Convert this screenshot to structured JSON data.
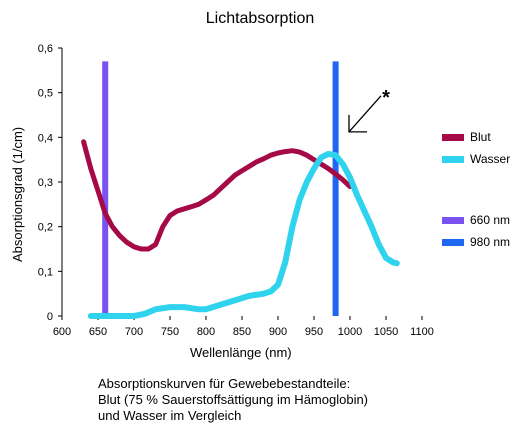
{
  "chart_data": {
    "type": "line",
    "title": "Lichtabsorption",
    "xlabel": "Wellenlänge (nm)",
    "ylabel": "Absorptionsgrad (1/cm)",
    "xlim": [
      600,
      1100
    ],
    "ylim": [
      0,
      0.6
    ],
    "x_ticks": [
      "600",
      "650",
      "700",
      "750",
      "800",
      "850",
      "900",
      "950",
      "1000",
      "1050",
      "1100"
    ],
    "y_ticks": [
      "0",
      "0,1",
      "0,2",
      "0,3",
      "0,4",
      "0,5",
      "0,6"
    ],
    "grid": false,
    "legend_position": "right",
    "series": [
      {
        "name": "Blut",
        "color": "#a50a46",
        "points": [
          [
            630,
            0.39
          ],
          [
            640,
            0.33
          ],
          [
            650,
            0.28
          ],
          [
            660,
            0.23
          ],
          [
            670,
            0.2
          ],
          [
            680,
            0.18
          ],
          [
            690,
            0.165
          ],
          [
            700,
            0.155
          ],
          [
            710,
            0.15
          ],
          [
            720,
            0.15
          ],
          [
            730,
            0.16
          ],
          [
            740,
            0.2
          ],
          [
            750,
            0.225
          ],
          [
            760,
            0.235
          ],
          [
            770,
            0.24
          ],
          [
            780,
            0.245
          ],
          [
            790,
            0.25
          ],
          [
            800,
            0.26
          ],
          [
            810,
            0.27
          ],
          [
            820,
            0.285
          ],
          [
            830,
            0.3
          ],
          [
            840,
            0.315
          ],
          [
            850,
            0.325
          ],
          [
            860,
            0.335
          ],
          [
            870,
            0.345
          ],
          [
            880,
            0.352
          ],
          [
            890,
            0.36
          ],
          [
            900,
            0.365
          ],
          [
            910,
            0.368
          ],
          [
            920,
            0.37
          ],
          [
            930,
            0.367
          ],
          [
            940,
            0.36
          ],
          [
            950,
            0.35
          ],
          [
            960,
            0.34
          ],
          [
            970,
            0.33
          ],
          [
            980,
            0.318
          ],
          [
            990,
            0.305
          ],
          [
            1000,
            0.29
          ]
        ]
      },
      {
        "name": "Wasser",
        "color": "#2fd3ee",
        "points": [
          [
            640,
            0
          ],
          [
            660,
            0
          ],
          [
            680,
            0
          ],
          [
            700,
            0
          ],
          [
            715,
            0.005
          ],
          [
            730,
            0.015
          ],
          [
            750,
            0.02
          ],
          [
            770,
            0.02
          ],
          [
            790,
            0.015
          ],
          [
            800,
            0.015
          ],
          [
            820,
            0.025
          ],
          [
            840,
            0.035
          ],
          [
            860,
            0.045
          ],
          [
            880,
            0.05
          ],
          [
            890,
            0.055
          ],
          [
            900,
            0.07
          ],
          [
            910,
            0.12
          ],
          [
            920,
            0.2
          ],
          [
            930,
            0.26
          ],
          [
            940,
            0.3
          ],
          [
            950,
            0.33
          ],
          [
            960,
            0.355
          ],
          [
            970,
            0.363
          ],
          [
            980,
            0.36
          ],
          [
            990,
            0.34
          ],
          [
            1000,
            0.31
          ],
          [
            1010,
            0.27
          ],
          [
            1020,
            0.235
          ],
          [
            1030,
            0.2
          ],
          [
            1040,
            0.16
          ],
          [
            1050,
            0.13
          ],
          [
            1060,
            0.12
          ],
          [
            1065,
            0.118
          ]
        ]
      }
    ],
    "markers": [
      {
        "name": "660 nm",
        "x": 660,
        "color": "#7a52f2"
      },
      {
        "name": "980 nm",
        "x": 980,
        "color": "#1f66f0"
      }
    ],
    "annotation": {
      "text": "*",
      "target_x": 1000,
      "target_y": 0.41
    }
  },
  "caption": {
    "line1": "Absorptionskurven für Gewebebestandteile:",
    "line2": "Blut (75 % Sauerstoffsättigung im Hämoglobin)",
    "line3": "und Wasser im Vergleich"
  }
}
